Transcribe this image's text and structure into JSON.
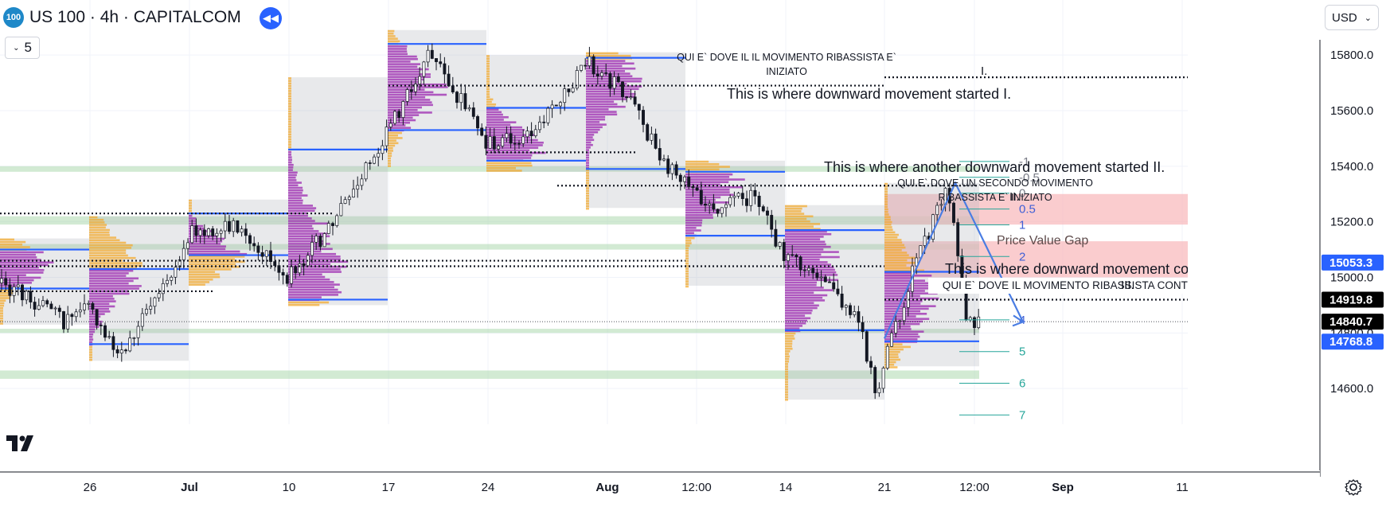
{
  "header": {
    "symbol_badge": "100",
    "title": "US 100 · 4h · CAPITALCOM",
    "interval_value": "5",
    "currency": "USD"
  },
  "icons": {
    "replay": "rewind-icon",
    "logo": "tradingview-logo-icon",
    "settings": "gear-icon",
    "dropdown": "chevron-down-icon"
  },
  "colors": {
    "accent": "#2962ff",
    "poc_line": "#2962ff",
    "profile_purple": "#9c27b0",
    "profile_orange": "#f5a623",
    "price_gap": "#f8bbbd",
    "green_zone": "#a5d6a7",
    "fib_line": "#26a69a"
  },
  "chart_data": {
    "type": "candlestick",
    "y_axis": {
      "ticks": [
        14600,
        14800,
        15000,
        15200,
        15400,
        15600,
        15800
      ],
      "tick_labels": [
        "14600.0",
        "14800.0",
        "15000.0",
        "15200.0",
        "15400.0",
        "15600.0",
        "15800.0"
      ]
    },
    "x_axis": {
      "ticks": [
        "26",
        "Jul",
        "10",
        "17",
        "24",
        "Aug",
        "12:00",
        "14",
        "21",
        "12:00",
        "Sep",
        "11"
      ],
      "bold_ticks": [
        "Jul",
        "Aug",
        "Sep"
      ]
    },
    "price_labels": [
      {
        "value": 15053.3,
        "text": "15053.3",
        "color": "#2962ff"
      },
      {
        "value": 14919.8,
        "text": "14919.8",
        "color": "#000000"
      },
      {
        "value": 14840.7,
        "text": "14840.7",
        "color": "#000000"
      },
      {
        "value": 14768.8,
        "text": "14768.8",
        "color": "#2962ff"
      }
    ],
    "annotations": {
      "it_1": "QUI E` DOVE IL IL MOVIMENTO RIBASSISTA E`",
      "it_1b": "INIZIATO",
      "mark_1": "I.",
      "en_1": "This is where downward movement started I.",
      "en_2": "This is where another downward movement started II.",
      "it_2": "QUI E` DOVE UN SECONDO MOVIMENTO",
      "it_2b": "RIBASSISTA E` INIZIATO",
      "mark_2": "II.",
      "price_gap": "Price Value Gap",
      "en_3": "This is where downward movement continued III.",
      "it_3": "QUI E` DOVE IL MOVIMENTO RIBASSISTA CONTINUA",
      "mark_3": "III."
    },
    "fib_levels": [
      {
        "label": "-1",
        "value": 15417
      },
      {
        "label": "-0.5",
        "value": 15360
      },
      {
        "label": "0",
        "value": 15303
      },
      {
        "label": "0.5",
        "value": 15246
      },
      {
        "label": "1",
        "value": 15189
      },
      {
        "label": "2",
        "value": 15075
      },
      {
        "label": "3",
        "value": 14961
      },
      {
        "label": "4",
        "value": 14847
      },
      {
        "label": "5",
        "value": 14733
      },
      {
        "label": "6",
        "value": 14619
      },
      {
        "label": "7",
        "value": 14505
      }
    ],
    "volume_profiles": [
      {
        "x0": 0,
        "x1": 112,
        "top": 15140,
        "bottom": 14830,
        "poc": 15050,
        "vah": 15100,
        "val": 14960
      },
      {
        "x0": 112,
        "x1": 237,
        "top": 15220,
        "bottom": 14700,
        "poc": 15030,
        "vah": 15030,
        "val": 14760
      },
      {
        "x0": 237,
        "x1": 362,
        "top": 15280,
        "bottom": 14970,
        "poc": 15080,
        "vah": 15230,
        "val": 15080
      },
      {
        "x0": 362,
        "x1": 487,
        "top": 15720,
        "bottom": 14900,
        "poc": 15040,
        "vah": 15460,
        "val": 14920
      },
      {
        "x0": 487,
        "x1": 611,
        "top": 15890,
        "bottom": 15400,
        "poc": 15680,
        "vah": 15840,
        "val": 15530
      },
      {
        "x0": 611,
        "x1": 736,
        "top": 15800,
        "bottom": 15380,
        "poc": 15460,
        "vah": 15610,
        "val": 15420
      },
      {
        "x0": 736,
        "x1": 861,
        "top": 15810,
        "bottom": 15250,
        "poc": 15730,
        "vah": 15790,
        "val": 15390
      },
      {
        "x0": 861,
        "x1": 986,
        "top": 15420,
        "bottom": 14970,
        "poc": 15330,
        "vah": 15380,
        "val": 15150
      },
      {
        "x0": 986,
        "x1": 1111,
        "top": 15260,
        "bottom": 14560,
        "poc": 15050,
        "vah": 15170,
        "val": 14810
      },
      {
        "x0": 1111,
        "x1": 1230,
        "top": 15340,
        "bottom": 14680,
        "poc": 14920,
        "vah": 15020,
        "val": 14770
      }
    ],
    "dotted_levels": [
      15720,
      15690,
      15450,
      15330,
      15230,
      15060,
      15040,
      14950,
      14919.8
    ],
    "green_zones": [
      [
        15400,
        15380
      ],
      [
        15220,
        15190
      ],
      [
        15120,
        15100
      ],
      [
        14815,
        14800
      ],
      [
        14665,
        14635
      ]
    ],
    "gap_zones": [
      {
        "x0": 1111,
        "y0": 15300,
        "y1": 15190
      },
      {
        "x0": 1111,
        "y0": 15130,
        "y1": 15000
      }
    ],
    "forecast_path": [
      {
        "x": 1111,
        "v": 14780
      },
      {
        "x": 1200,
        "v": 15340
      },
      {
        "x": 1285,
        "v": 14840
      }
    ],
    "candles_anchor": [
      [
        0,
        14980
      ],
      [
        40,
        14920
      ],
      [
        80,
        14840
      ],
      [
        112,
        14900
      ],
      [
        150,
        14730
      ],
      [
        200,
        14930
      ],
      [
        237,
        15160
      ],
      [
        300,
        15180
      ],
      [
        362,
        15000
      ],
      [
        420,
        15200
      ],
      [
        487,
        15530
      ],
      [
        540,
        15800
      ],
      [
        580,
        15630
      ],
      [
        611,
        15480
      ],
      [
        660,
        15500
      ],
      [
        700,
        15620
      ],
      [
        736,
        15780
      ],
      [
        790,
        15650
      ],
      [
        830,
        15420
      ],
      [
        861,
        15330
      ],
      [
        900,
        15250
      ],
      [
        950,
        15300
      ],
      [
        986,
        15060
      ],
      [
        1030,
        15020
      ],
      [
        1080,
        14830
      ],
      [
        1100,
        14590
      ],
      [
        1150,
        15050
      ],
      [
        1190,
        15320
      ],
      [
        1215,
        14850
      ],
      [
        1230,
        14840
      ]
    ]
  }
}
